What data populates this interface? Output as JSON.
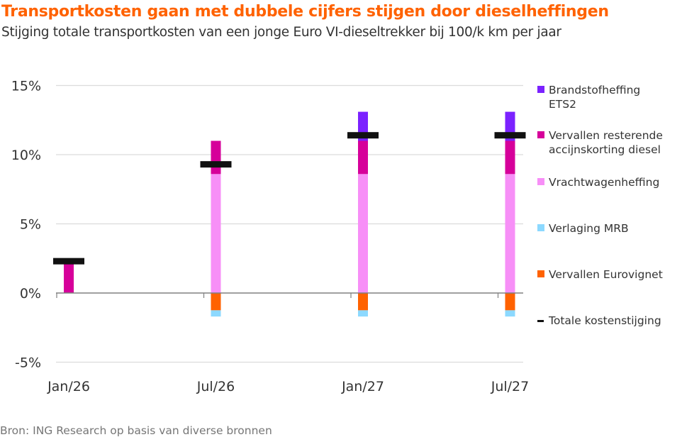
{
  "header": {
    "title": "Transportkosten gaan met dubbele cijfers stijgen door dieselheffingen",
    "subtitle": "Stijging totale transportkosten van een jonge Euro VI-dieseltrekker bij 100/k km per jaar"
  },
  "footer": {
    "source": "Bron: ING Research op basis van diverse bronnen"
  },
  "chart_data": {
    "type": "bar",
    "stacked": true,
    "title": "Transportkosten gaan met dubbele cijfers stijgen door dieselheffingen",
    "subtitle": "Stijging totale transportkosten van een jonge Euro VI-dieseltrekker bij 100/k km per jaar",
    "xlabel": "",
    "ylabel": "",
    "categories": [
      "Jan/26",
      "Jul/26",
      "Jan/27",
      "Jul/27"
    ],
    "ylim": [
      -5,
      15
    ],
    "yticks": [
      15,
      10,
      5,
      0,
      -5
    ],
    "ytick_labels": [
      "15%",
      "10%",
      "5%",
      "0%",
      "-5%"
    ],
    "grid": true,
    "legend_position": "right",
    "series": [
      {
        "name": "Vrachtwagenheffing",
        "label": "Vrachtwagenheffing",
        "color": "#f78ff7",
        "values": [
          0,
          8.6,
          8.6,
          8.6
        ]
      },
      {
        "name": "Vervallen resterende accijnskorting diesel",
        "label": [
          "Vervallen resterende",
          "accijnskorting diesel"
        ],
        "color": "#d6009a",
        "values": [
          2.2,
          2.4,
          2.4,
          2.4
        ]
      },
      {
        "name": "Brandstofheffing ETS2",
        "label": [
          "Brandstofheffing",
          "ETS2"
        ],
        "color": "#7b22ff",
        "values": [
          0,
          0,
          2.1,
          2.1
        ]
      },
      {
        "name": "Vervallen Eurovignet",
        "label": "Vervallen Eurovignet",
        "color": "#ff6200",
        "values": [
          0,
          -1.25,
          -1.25,
          -1.25
        ]
      },
      {
        "name": "Verlaging MRB",
        "label": "Verlaging MRB",
        "color": "#8cd9ff",
        "values": [
          0,
          -0.45,
          -0.45,
          -0.45
        ]
      }
    ],
    "total": {
      "name": "Totale kostenstijging",
      "label": "Totale kostenstijging",
      "color": "#111111",
      "values": [
        2.3,
        9.3,
        11.4,
        11.4
      ]
    },
    "legend_order": [
      "Brandstofheffing ETS2",
      "Vervallen resterende accijnskorting diesel",
      "Vrachtwagenheffing",
      "Verlaging MRB",
      "Vervallen Eurovignet",
      "Totale kostenstijging"
    ]
  }
}
